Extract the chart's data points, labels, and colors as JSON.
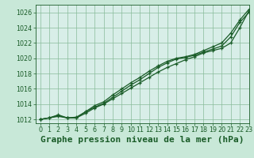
{
  "title": "Graphe pression niveau de la mer (hPa)",
  "background_color": "#c8e8d8",
  "plot_bg_color": "#d8eee8",
  "grid_color": "#88bb99",
  "line_color": "#1a5c28",
  "xlim": [
    -0.5,
    23
  ],
  "ylim": [
    1011.5,
    1027.0
  ],
  "yticks": [
    1012,
    1014,
    1016,
    1018,
    1020,
    1022,
    1024,
    1026
  ],
  "xticks": [
    0,
    1,
    2,
    3,
    4,
    5,
    6,
    7,
    8,
    9,
    10,
    11,
    12,
    13,
    14,
    15,
    16,
    17,
    18,
    19,
    20,
    21,
    22,
    23
  ],
  "series": [
    [
      1012.0,
      1012.2,
      1012.5,
      1012.2,
      1012.2,
      1012.8,
      1013.5,
      1014.0,
      1014.7,
      1015.4,
      1016.1,
      1016.8,
      1017.5,
      1018.2,
      1018.8,
      1019.3,
      1019.8,
      1020.2,
      1020.7,
      1021.0,
      1021.3,
      1022.0,
      1024.0,
      1026.2
    ],
    [
      1012.0,
      1012.2,
      1012.6,
      1012.2,
      1012.3,
      1013.0,
      1013.8,
      1014.3,
      1015.2,
      1016.0,
      1016.8,
      1017.5,
      1018.3,
      1019.0,
      1019.6,
      1020.0,
      1020.2,
      1020.5,
      1021.0,
      1021.5,
      1022.0,
      1023.3,
      1025.0,
      1026.4
    ],
    [
      1012.0,
      1012.2,
      1012.4,
      1012.2,
      1012.2,
      1013.0,
      1013.6,
      1014.1,
      1014.9,
      1015.7,
      1016.5,
      1017.2,
      1018.0,
      1018.8,
      1019.4,
      1019.9,
      1020.1,
      1020.4,
      1020.8,
      1021.2,
      1021.6,
      1022.8,
      1024.7,
      1026.0
    ]
  ],
  "marker": "+",
  "marker_size": 3.5,
  "line_width": 0.9,
  "title_fontsize": 8,
  "tick_fontsize": 5.8
}
